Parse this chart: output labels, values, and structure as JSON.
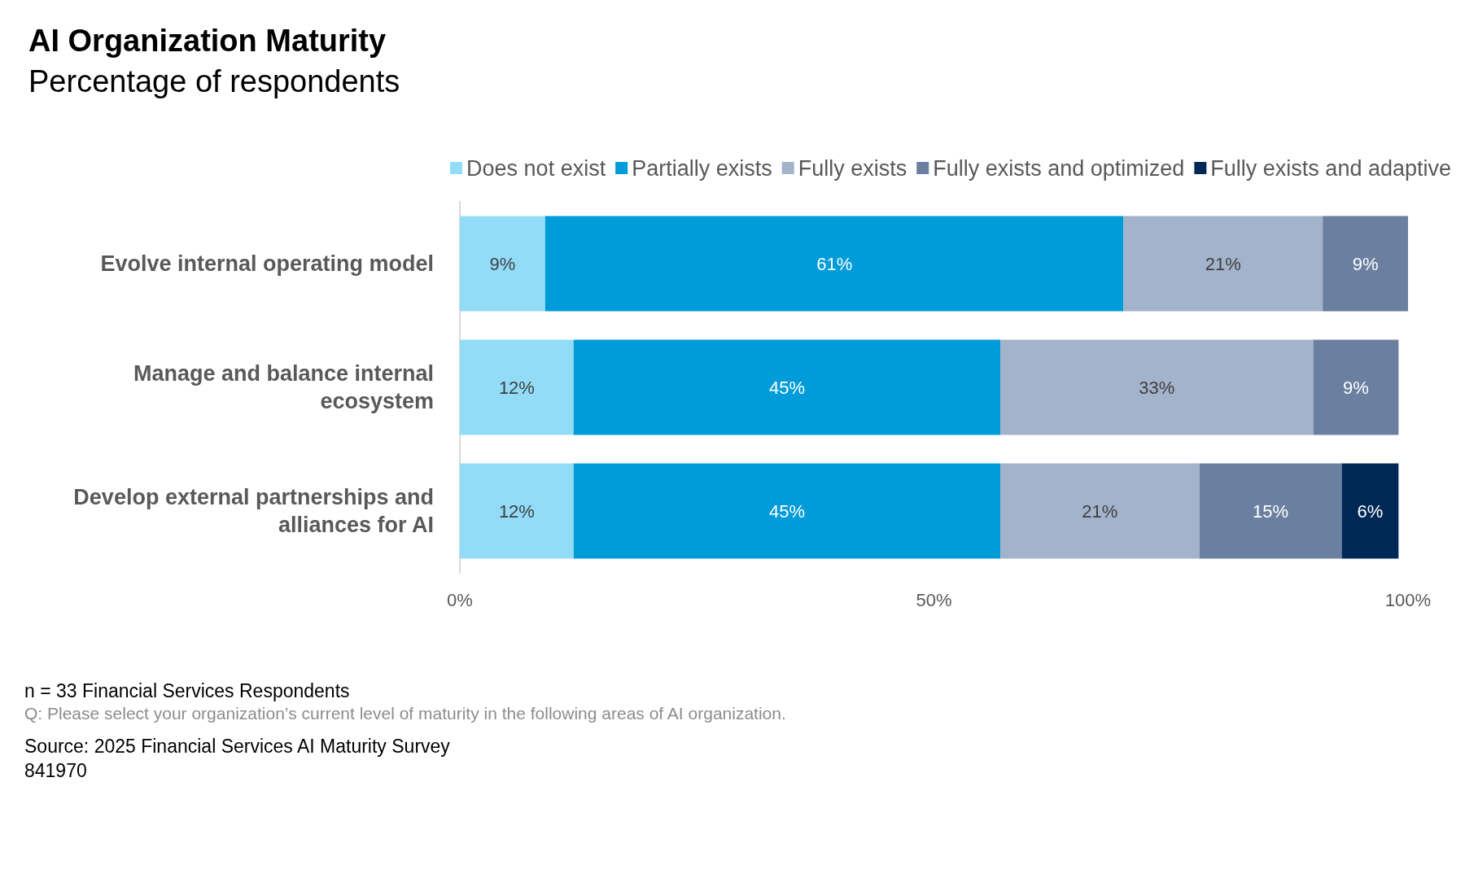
{
  "chart_data": {
    "type": "bar",
    "orientation": "horizontal",
    "stacked": true,
    "title": "AI Organization Maturity",
    "subtitle": "Percentage of respondents",
    "categories": [
      "Evolve internal operating model",
      "Manage and balance internal\necosystem",
      "Develop external partnerships and\nalliances for AI"
    ],
    "series": [
      {
        "name": "Does not exist",
        "color": "#93dcf8",
        "values": [
          9,
          12,
          12
        ]
      },
      {
        "name": "Partially exists",
        "color": "#009bd9",
        "values": [
          61,
          45,
          45
        ]
      },
      {
        "name": "Fully exists",
        "color": "#a2b3cb",
        "values": [
          21,
          33,
          21
        ]
      },
      {
        "name": "Fully exists and optimized",
        "color": "#6b7fa0",
        "values": [
          9,
          9,
          15
        ]
      },
      {
        "name": "Fully exists and adaptive",
        "color": "#002856",
        "values": [
          null,
          null,
          6
        ]
      }
    ],
    "xlim": [
      0,
      100
    ],
    "xticks": [
      {
        "value": 0,
        "label": "0%"
      },
      {
        "value": 50,
        "label": "50%"
      },
      {
        "value": 100,
        "label": "100%"
      }
    ],
    "value_labels": [
      [
        "9%",
        "12%",
        "12%"
      ],
      [
        "61%",
        "45%",
        "45%"
      ],
      [
        "21%",
        "33%",
        "21%"
      ],
      [
        "9%",
        "9%",
        "15%"
      ],
      [
        null,
        null,
        "6%"
      ]
    ],
    "legend": "top right",
    "grid": false,
    "annotations": [
      "n = 33 Financial Services Respondents",
      "Q: Please select your organization’s current level of maturity in the following areas of AI organization.",
      "Source: 2025 Financial Services AI Maturity Survey",
      "841970"
    ]
  }
}
